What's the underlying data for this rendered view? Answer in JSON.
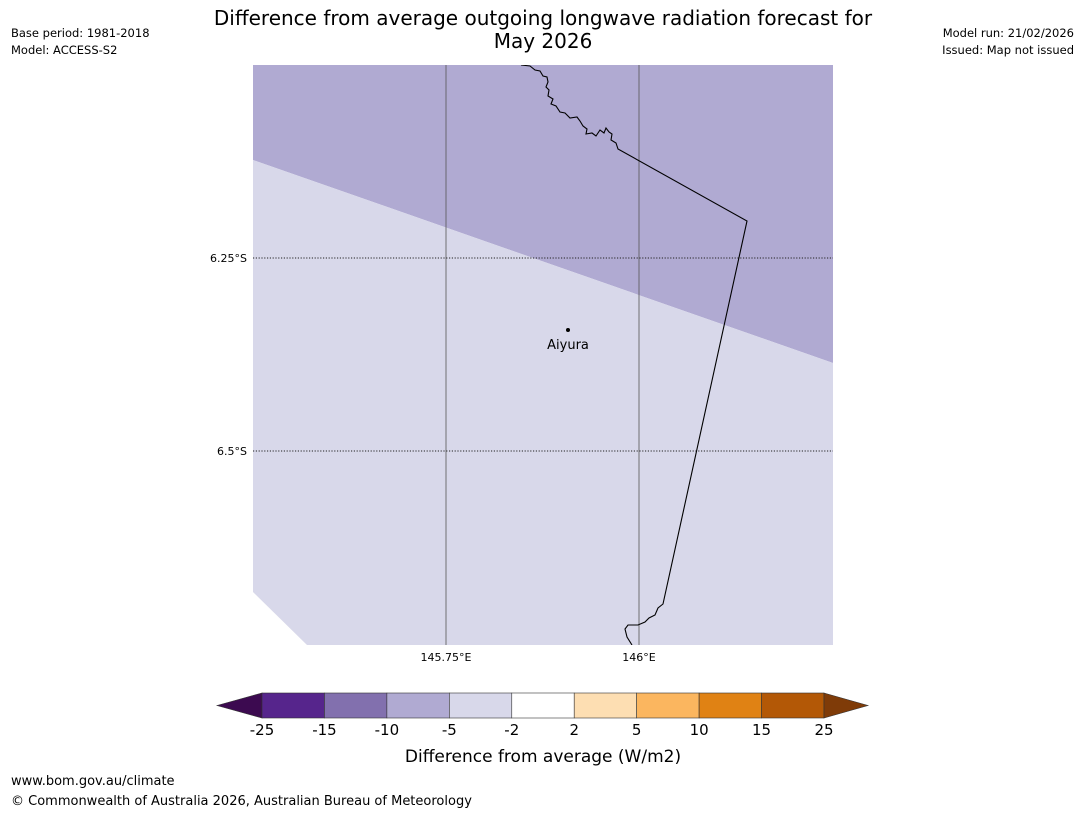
{
  "header": {
    "title_line1": "Difference from average outgoing longwave radiation forecast for",
    "title_line2": "May 2026",
    "base_period": "Base period: 1981-2018",
    "model": "Model: ACCESS-S2",
    "model_run": "Model run: 21/02/2026",
    "issued": "Issued: Map not issued"
  },
  "map": {
    "lat_labels": [
      "6.25°S",
      "6.5°S"
    ],
    "lon_labels": [
      "145.75°E",
      "146°E"
    ],
    "place": {
      "name": "Aiyura",
      "marker_icon": "location-dot-icon"
    },
    "fill_colors": {
      "band_-10_to_-5": "#b0aad2",
      "band_-5_to_-2": "#d8d8ea"
    }
  },
  "colorbar": {
    "title": "Difference from average (W/m2)",
    "tick_labels": [
      "-25",
      "-15",
      "-10",
      "-5",
      "-2",
      "2",
      "5",
      "10",
      "15",
      "25"
    ],
    "bins": [
      {
        "range": "< -25",
        "color": "#3c0a50"
      },
      {
        "range": "-25 to -15",
        "color": "#56258c"
      },
      {
        "range": "-15 to -10",
        "color": "#8270ae"
      },
      {
        "range": "-10 to -5",
        "color": "#b0aad2"
      },
      {
        "range": "-5 to -2",
        "color": "#d8d8ea"
      },
      {
        "range": "-2 to 2",
        "color": "#ffffff"
      },
      {
        "range": "2 to 5",
        "color": "#fddeb2"
      },
      {
        "range": "5 to 10",
        "color": "#fbb65f"
      },
      {
        "range": "10 to 15",
        "color": "#e08214"
      },
      {
        "range": "15 to 25",
        "color": "#b35806"
      },
      {
        "range": "> 25",
        "color": "#7f3b08"
      }
    ]
  },
  "footer": {
    "url": "www.bom.gov.au/climate",
    "copyright": "© Commonwealth of Australia 2026, Australian Bureau of Meteorology"
  }
}
